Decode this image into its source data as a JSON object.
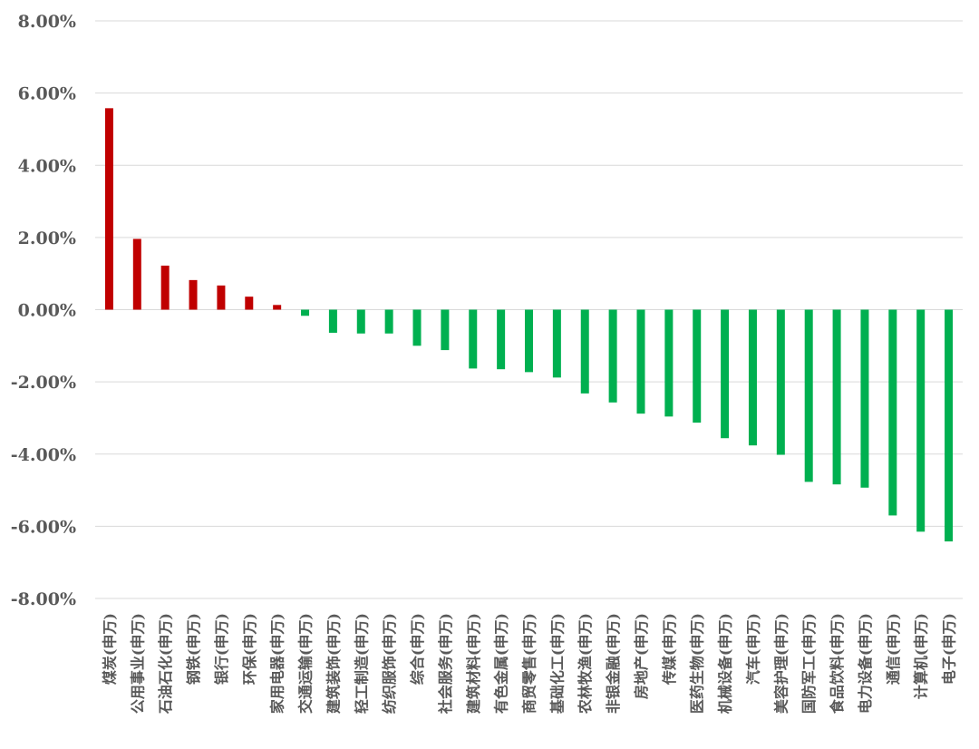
{
  "chart_data": {
    "type": "bar",
    "ylim": [
      -8,
      8
    ],
    "y_tick_values": [
      8,
      6,
      4,
      2,
      0,
      -2,
      -4,
      -6,
      -8
    ],
    "y_tick_labels": [
      "8.00%",
      "6.00%",
      "4.00%",
      "2.00%",
      "0.00%",
      "-2.00%",
      "-4.00%",
      "-6.00%",
      "-8.00%"
    ],
    "grid": true,
    "positive_color": "#c00000",
    "negative_color": "#00b050",
    "categories": [
      "煤炭(申万)",
      "公用事业(申万)",
      "石油石化(申万)",
      "钢铁(申万)",
      "银行(申万)",
      "环保(申万)",
      "家用电器(申万)",
      "交通运输(申万)",
      "建筑装饰(申万)",
      "轻工制造(申万)",
      "纺织服饰(申万)",
      "综合(申万)",
      "社会服务(申万)",
      "建筑材料(申万)",
      "有色金属(申万)",
      "商贸零售(申万)",
      "基础化工(申万)",
      "农林牧渔(申万)",
      "非银金融(申万)",
      "房地产(申万)",
      "传媒(申万)",
      "医药生物(申万)",
      "机械设备(申万)",
      "汽车(申万)",
      "美容护理(申万)",
      "国防军工(申万)",
      "食品饮料(申万)",
      "电力设备(申万)",
      "通信(申万)",
      "计算机(申万)",
      "电子(申万)"
    ],
    "values": [
      5.58,
      1.96,
      1.22,
      0.82,
      0.67,
      0.36,
      0.13,
      -0.17,
      -0.64,
      -0.66,
      -0.66,
      -1.0,
      -1.12,
      -1.63,
      -1.65,
      -1.73,
      -1.88,
      -2.32,
      -2.57,
      -2.88,
      -2.96,
      -3.13,
      -3.56,
      -3.76,
      -4.02,
      -4.77,
      -4.84,
      -4.93,
      -5.7,
      -6.15,
      -6.42
    ]
  }
}
